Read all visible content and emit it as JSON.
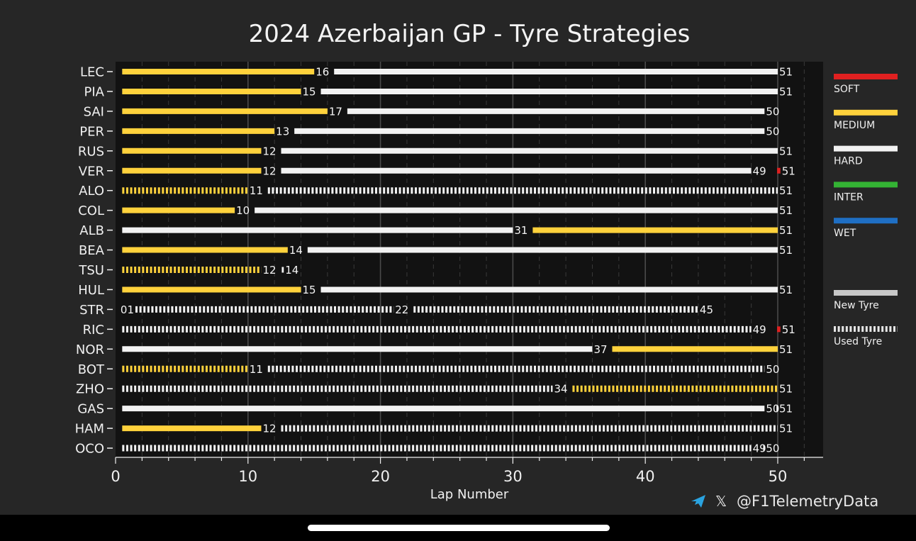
{
  "colors": {
    "SOFT": "#e02020",
    "MEDIUM": "#ffd23c",
    "HARD": "#f2f2f2",
    "INTER": "#34b334",
    "WET": "#1f6fc4",
    "NEW_TYRE": "#c8c8c8",
    "USED_TYRE": "#e6e6e6",
    "plot_bg": "#121212",
    "page_bg": "#262626"
  },
  "chart_data": {
    "type": "bar",
    "title": "2024 Azerbaijan GP - Tyre Strategies",
    "xlabel": "Lap Number",
    "ylabel": "",
    "xlim": [
      0,
      52.5
    ],
    "xticks": [
      0,
      10,
      20,
      30,
      40,
      50
    ],
    "legend": {
      "position": "right",
      "compounds": [
        "SOFT",
        "MEDIUM",
        "HARD",
        "INTER",
        "WET"
      ],
      "tyre_state": [
        "New Tyre",
        "Used Tyre"
      ]
    },
    "watermark": "@F1TelemetryData",
    "drivers": [
      {
        "driver": "LEC",
        "stints": [
          {
            "compound": "MEDIUM",
            "new": true,
            "start": 0.5,
            "end": 15,
            "label": "16"
          },
          {
            "compound": "HARD",
            "new": true,
            "start": 16.5,
            "end": 50,
            "label": "51"
          }
        ]
      },
      {
        "driver": "PIA",
        "stints": [
          {
            "compound": "MEDIUM",
            "new": true,
            "start": 0.5,
            "end": 14,
            "label": "15"
          },
          {
            "compound": "HARD",
            "new": true,
            "start": 15.5,
            "end": 50,
            "label": "51"
          }
        ]
      },
      {
        "driver": "SAI",
        "stints": [
          {
            "compound": "MEDIUM",
            "new": true,
            "start": 0.5,
            "end": 16,
            "label": "17"
          },
          {
            "compound": "HARD",
            "new": true,
            "start": 17.5,
            "end": 49,
            "label": "50"
          }
        ]
      },
      {
        "driver": "PER",
        "stints": [
          {
            "compound": "MEDIUM",
            "new": true,
            "start": 0.5,
            "end": 12,
            "label": "13"
          },
          {
            "compound": "HARD",
            "new": true,
            "start": 13.5,
            "end": 49,
            "label": "50"
          }
        ]
      },
      {
        "driver": "RUS",
        "stints": [
          {
            "compound": "MEDIUM",
            "new": true,
            "start": 0.5,
            "end": 11,
            "label": "12"
          },
          {
            "compound": "HARD",
            "new": true,
            "start": 12.5,
            "end": 50,
            "label": "51"
          }
        ]
      },
      {
        "driver": "VER",
        "stints": [
          {
            "compound": "MEDIUM",
            "new": true,
            "start": 0.5,
            "end": 11,
            "label": "12"
          },
          {
            "compound": "HARD",
            "new": true,
            "start": 12.5,
            "end": 48,
            "label": "49"
          },
          {
            "compound": "SOFT",
            "new": true,
            "start": 49.95,
            "end": 50.2,
            "label": "51"
          }
        ]
      },
      {
        "driver": "ALO",
        "stints": [
          {
            "compound": "MEDIUM",
            "new": false,
            "start": 0.5,
            "end": 10,
            "label": "11"
          },
          {
            "compound": "HARD",
            "new": false,
            "start": 11.5,
            "end": 50,
            "label": "51"
          }
        ]
      },
      {
        "driver": "COL",
        "stints": [
          {
            "compound": "MEDIUM",
            "new": true,
            "start": 0.5,
            "end": 9,
            "label": "10"
          },
          {
            "compound": "HARD",
            "new": true,
            "start": 10.5,
            "end": 50,
            "label": "51"
          }
        ]
      },
      {
        "driver": "ALB",
        "stints": [
          {
            "compound": "HARD",
            "new": true,
            "start": 0.5,
            "end": 30,
            "label": "31"
          },
          {
            "compound": "MEDIUM",
            "new": true,
            "start": 31.5,
            "end": 50,
            "label": "51"
          }
        ]
      },
      {
        "driver": "BEA",
        "stints": [
          {
            "compound": "MEDIUM",
            "new": true,
            "start": 0.5,
            "end": 13,
            "label": "14"
          },
          {
            "compound": "HARD",
            "new": true,
            "start": 14.5,
            "end": 50,
            "label": "51"
          }
        ]
      },
      {
        "driver": "TSU",
        "stints": [
          {
            "compound": "MEDIUM",
            "new": false,
            "start": 0.5,
            "end": 11,
            "label": "12"
          },
          {
            "compound": "HARD",
            "new": true,
            "start": 12.55,
            "end": 12.7,
            "label": "14"
          }
        ]
      },
      {
        "driver": "HUL",
        "stints": [
          {
            "compound": "MEDIUM",
            "new": true,
            "start": 0.5,
            "end": 14,
            "label": "15"
          },
          {
            "compound": "HARD",
            "new": true,
            "start": 15.5,
            "end": 50,
            "label": "51"
          }
        ]
      },
      {
        "driver": "STR",
        "stints": [
          {
            "compound": "HARD",
            "new": false,
            "start": 1.5,
            "end": 21,
            "label": "22",
            "start_label": "01"
          },
          {
            "compound": "HARD",
            "new": false,
            "start": 22.5,
            "end": 44,
            "label": "45"
          }
        ]
      },
      {
        "driver": "RIC",
        "stints": [
          {
            "compound": "HARD",
            "new": false,
            "start": 0.5,
            "end": 48,
            "label": "49"
          },
          {
            "compound": "SOFT",
            "new": true,
            "start": 49.95,
            "end": 50.2,
            "label": "51"
          }
        ]
      },
      {
        "driver": "NOR",
        "stints": [
          {
            "compound": "HARD",
            "new": true,
            "start": 0.5,
            "end": 36,
            "label": "37"
          },
          {
            "compound": "MEDIUM",
            "new": true,
            "start": 37.5,
            "end": 50,
            "label": "51"
          }
        ]
      },
      {
        "driver": "BOT",
        "stints": [
          {
            "compound": "MEDIUM",
            "new": false,
            "start": 0.5,
            "end": 10,
            "label": "11"
          },
          {
            "compound": "HARD",
            "new": false,
            "start": 11.5,
            "end": 49,
            "label": "50"
          }
        ]
      },
      {
        "driver": "ZHO",
        "stints": [
          {
            "compound": "HARD",
            "new": false,
            "start": 0.5,
            "end": 33,
            "label": "34"
          },
          {
            "compound": "MEDIUM",
            "new": false,
            "start": 34.5,
            "end": 50,
            "label": "51"
          }
        ]
      },
      {
        "driver": "GAS",
        "stints": [
          {
            "compound": "HARD",
            "new": true,
            "start": 0.5,
            "end": 49,
            "label": "50"
          },
          {
            "compound": "HARD",
            "new": true,
            "start": 49.9,
            "end": 50,
            "label": "51"
          }
        ]
      },
      {
        "driver": "HAM",
        "stints": [
          {
            "compound": "MEDIUM",
            "new": true,
            "start": 0.5,
            "end": 11,
            "label": "12"
          },
          {
            "compound": "HARD",
            "new": false,
            "start": 12.5,
            "end": 50,
            "label": "51"
          }
        ]
      },
      {
        "driver": "OCO",
        "stints": [
          {
            "compound": "HARD",
            "new": false,
            "start": 0.5,
            "end": 48,
            "label": "49"
          },
          {
            "compound": "HARD",
            "new": false,
            "start": 48.9,
            "end": 49,
            "label": "50"
          }
        ]
      }
    ]
  }
}
